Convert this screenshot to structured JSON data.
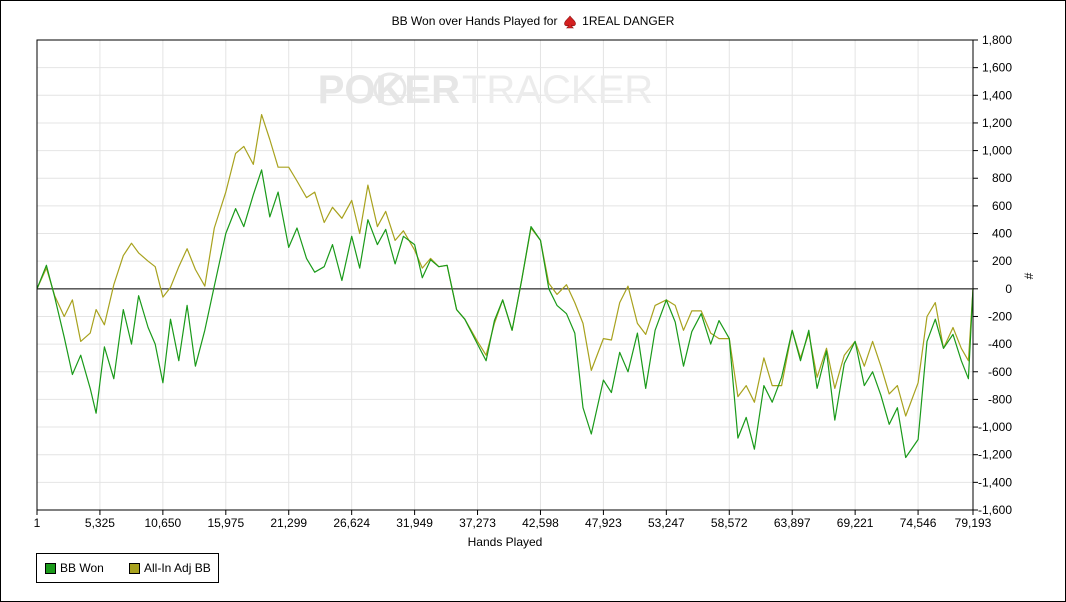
{
  "title_prefix": "BB Won over Hands Played for",
  "title_player": "1REAL DANGER",
  "watermark": {
    "left": "POKER",
    "right": "TRACKER"
  },
  "colors": {
    "bb_won": "#1a9a1a",
    "allin": "#a8a21e",
    "grid": "#e4e4e4",
    "zero": "#000000",
    "spade": "#d42020"
  },
  "chart_data": {
    "type": "line",
    "title": "BB Won over Hands Played for 1REAL DANGER",
    "xlabel": "Hands Played",
    "ylabel": "#",
    "xlim": [
      1,
      79193
    ],
    "ylim": [
      -1600,
      1800
    ],
    "x_ticks": [
      1,
      5325,
      10650,
      15975,
      21299,
      26624,
      31949,
      37273,
      42598,
      47923,
      53247,
      58572,
      63897,
      69221,
      74546,
      79193
    ],
    "x_tick_labels": [
      "1",
      "5,325",
      "10,650",
      "15,975",
      "21,299",
      "26,624",
      "31,949",
      "37,273",
      "42,598",
      "47,923",
      "53,247",
      "58,572",
      "63,897",
      "69,221",
      "74,546",
      "79,193"
    ],
    "y_ticks": [
      1800,
      1600,
      1400,
      1200,
      1000,
      800,
      600,
      400,
      200,
      0,
      -200,
      -400,
      -600,
      -800,
      -1000,
      -1200,
      -1400,
      -1600
    ],
    "y_tick_labels": [
      "1,800",
      "1,600",
      "1,400",
      "1,200",
      "1,000",
      "800",
      "600",
      "400",
      "200",
      "0",
      "-200",
      "-400",
      "-600",
      "-800",
      "-1,000",
      "-1,200",
      "-1,400",
      "-1,600"
    ],
    "grid": true,
    "legend_position": "bottom-left",
    "series": [
      {
        "name": "BB Won",
        "x": [
          1,
          800,
          1500,
          2300,
          3000,
          3700,
          4500,
          5000,
          5700,
          6500,
          7300,
          8000,
          8600,
          9400,
          10000,
          10650,
          11300,
          12000,
          12700,
          13400,
          14200,
          15000,
          15975,
          16800,
          17500,
          18300,
          19000,
          19700,
          20400,
          21299,
          22000,
          22800,
          23500,
          24300,
          25000,
          25800,
          26624,
          27300,
          28000,
          28800,
          29500,
          30300,
          31000,
          31949,
          32600,
          33300,
          34000,
          34700,
          35500,
          36200,
          37273,
          38000,
          38700,
          39400,
          40200,
          41000,
          41800,
          42598,
          43300,
          44000,
          44800,
          45500,
          46200,
          46900,
          47923,
          48600,
          49300,
          50000,
          50800,
          51500,
          52300,
          53247,
          54000,
          54700,
          55400,
          56200,
          57000,
          57700,
          58572,
          59300,
          60000,
          60700,
          61500,
          62200,
          63000,
          63897,
          64600,
          65300,
          66000,
          66800,
          67500,
          68300,
          69221,
          70000,
          70700,
          71400,
          72100,
          72800,
          73500,
          74546,
          75300,
          76000,
          76700,
          77500,
          78200,
          78800,
          79193
        ],
        "y": [
          0,
          170,
          -60,
          -350,
          -620,
          -480,
          -720,
          -900,
          -420,
          -650,
          -150,
          -400,
          -50,
          -280,
          -400,
          -680,
          -220,
          -520,
          -120,
          -560,
          -300,
          20,
          400,
          580,
          450,
          680,
          860,
          520,
          700,
          300,
          440,
          220,
          120,
          160,
          320,
          60,
          380,
          150,
          500,
          320,
          430,
          180,
          380,
          320,
          80,
          210,
          160,
          170,
          -150,
          -220,
          -400,
          -520,
          -230,
          -80,
          -300,
          60,
          450,
          350,
          0,
          -120,
          -180,
          -320,
          -860,
          -1050,
          -660,
          -750,
          -460,
          -600,
          -320,
          -720,
          -300,
          -80,
          -240,
          -560,
          -310,
          -180,
          -400,
          -230,
          -360,
          -1080,
          -930,
          -1160,
          -700,
          -820,
          -640,
          -300,
          -520,
          -300,
          -720,
          -450,
          -950,
          -540,
          -380,
          -700,
          -600,
          -770,
          -980,
          -860,
          -1220,
          -1090,
          -380,
          -220,
          -430,
          -330,
          -520,
          -650,
          0
        ]
      },
      {
        "name": "All-In Adj BB",
        "x": [
          1,
          800,
          1500,
          2300,
          3000,
          3700,
          4500,
          5000,
          5700,
          6500,
          7300,
          8000,
          8600,
          9400,
          10000,
          10650,
          11300,
          12000,
          12700,
          13400,
          14200,
          15000,
          15975,
          16800,
          17500,
          18300,
          19000,
          19700,
          20400,
          21299,
          22000,
          22800,
          23500,
          24300,
          25000,
          25800,
          26624,
          27300,
          28000,
          28800,
          29500,
          30300,
          31000,
          31949,
          32600,
          33300,
          34000,
          34700,
          35500,
          36200,
          37273,
          38000,
          38700,
          39400,
          40200,
          41000,
          41800,
          42598,
          43300,
          44000,
          44800,
          45500,
          46200,
          46900,
          47923,
          48600,
          49300,
          50000,
          50800,
          51500,
          52300,
          53247,
          54000,
          54700,
          55400,
          56200,
          57000,
          57700,
          58572,
          59300,
          60000,
          60700,
          61500,
          62200,
          63000,
          63897,
          64600,
          65300,
          66000,
          66800,
          67500,
          68300,
          69221,
          70000,
          70700,
          71400,
          72100,
          72800,
          73500,
          74546,
          75300,
          76000,
          76700,
          77500,
          78200,
          78800,
          79193
        ],
        "y": [
          0,
          150,
          -50,
          -200,
          -80,
          -380,
          -320,
          -150,
          -260,
          30,
          240,
          330,
          260,
          200,
          160,
          -60,
          10,
          160,
          290,
          140,
          20,
          440,
          700,
          980,
          1030,
          900,
          1260,
          1080,
          880,
          880,
          780,
          660,
          700,
          480,
          590,
          510,
          640,
          400,
          750,
          450,
          560,
          350,
          420,
          280,
          150,
          220,
          160,
          170,
          -150,
          -220,
          -380,
          -480,
          -250,
          -80,
          -300,
          60,
          440,
          350,
          40,
          -40,
          30,
          -100,
          -250,
          -590,
          -360,
          -370,
          -100,
          20,
          -250,
          -330,
          -120,
          -80,
          -120,
          -300,
          -160,
          -160,
          -320,
          -360,
          -360,
          -780,
          -700,
          -820,
          -500,
          -700,
          -700,
          -300,
          -500,
          -320,
          -640,
          -430,
          -720,
          -480,
          -380,
          -560,
          -380,
          -560,
          -760,
          -700,
          -920,
          -680,
          -200,
          -100,
          -430,
          -280,
          -430,
          -520,
          0
        ]
      }
    ]
  }
}
